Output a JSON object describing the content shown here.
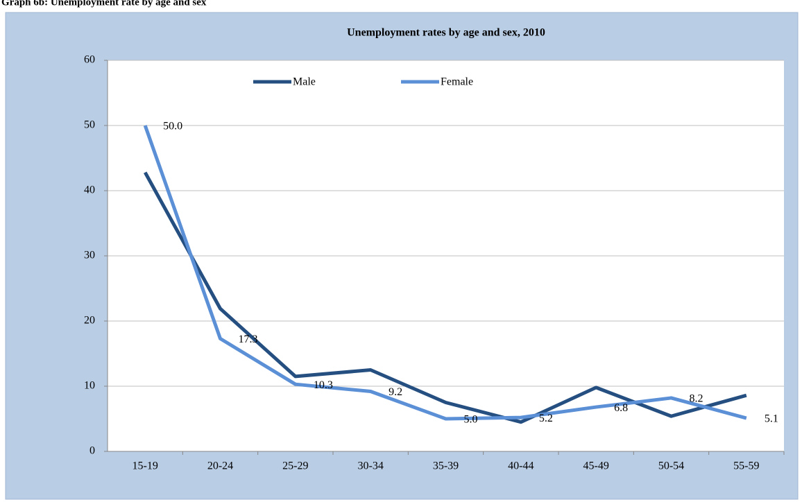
{
  "header": "Graph 6b: Unemployment rate by age and sex",
  "chart_data": {
    "type": "line",
    "title": "Unemployment rates by age and sex, 2010",
    "categories": [
      "15-19",
      "20-24",
      "25-29",
      "30-34",
      "35-39",
      "40-44",
      "45-49",
      "50-54",
      "55-59"
    ],
    "series": [
      {
        "name": "Male",
        "color": "#254f80",
        "values": [
          42.8,
          21.9,
          11.5,
          12.5,
          7.5,
          4.5,
          9.8,
          5.4,
          8.6
        ]
      },
      {
        "name": "Female",
        "color": "#5b8fd6",
        "values": [
          50.0,
          17.3,
          10.3,
          9.2,
          5.0,
          5.2,
          6.8,
          8.2,
          5.1
        ],
        "value_labels": [
          "50.0",
          "17.3",
          "10.3",
          "9.2",
          "5.0",
          "5.2",
          "6.8",
          "8.2",
          "5.1"
        ]
      }
    ],
    "ylim": [
      0,
      60
    ],
    "yticks": [
      0,
      10,
      20,
      30,
      40,
      50,
      60
    ],
    "grid": true,
    "legend": "top"
  }
}
